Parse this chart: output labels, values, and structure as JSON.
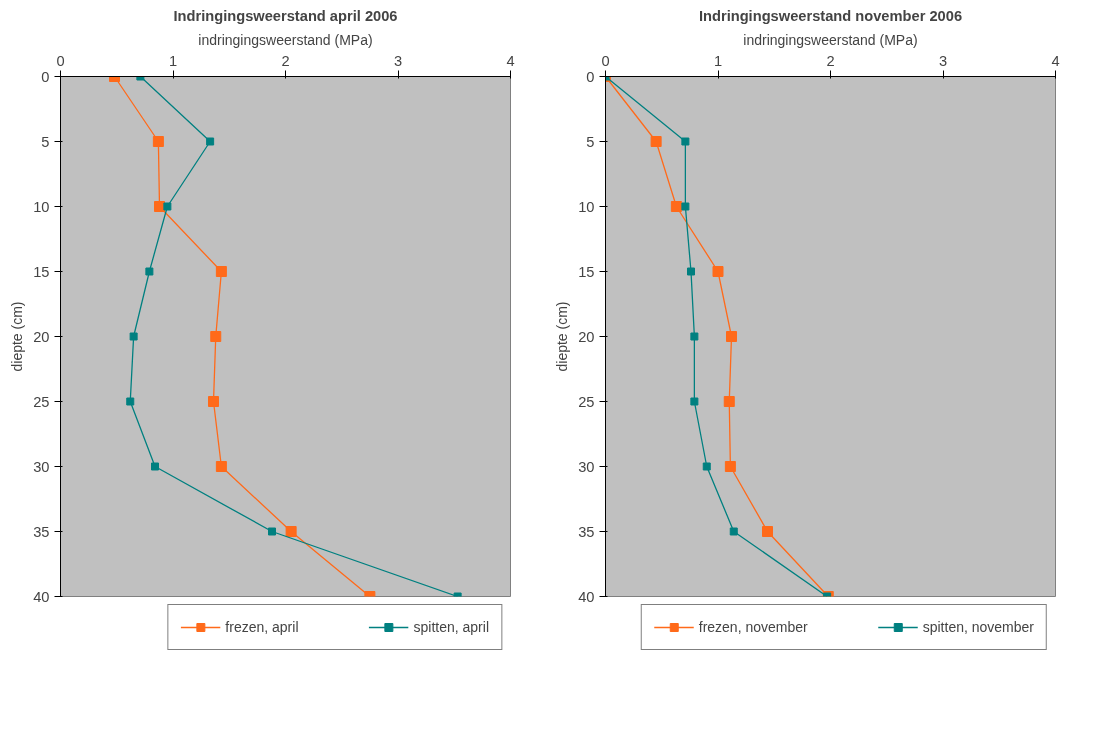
{
  "chart_data": [
    {
      "type": "line",
      "title": "Indringingsweerstand april 2006",
      "xlabel": "indringingsweerstand (MPa)",
      "ylabel": "diepte (cm)",
      "xlim": [
        0,
        4
      ],
      "xticks": [
        0,
        1,
        2,
        3,
        4
      ],
      "ylim": [
        40,
        0
      ],
      "yticks": [
        0,
        5,
        10,
        15,
        20,
        25,
        30,
        35,
        40
      ],
      "grid": false,
      "legend": "bottom",
      "marker": "square",
      "line_style": "solid",
      "series": [
        {
          "name": "frezen, april",
          "color": "#ff6a1a",
          "x": [
            0.48,
            0.87,
            0.88,
            1.43,
            1.38,
            1.36,
            1.43,
            2.05,
            2.75
          ],
          "values": [
            0,
            5,
            10,
            15,
            20,
            25,
            30,
            35,
            40
          ]
        },
        {
          "name": "spitten, april",
          "color": "#008080",
          "x": [
            0.71,
            1.33,
            0.95,
            0.79,
            0.65,
            0.62,
            0.84,
            1.88,
            3.53
          ],
          "values": [
            0,
            5,
            10,
            15,
            20,
            25,
            30,
            35,
            40
          ]
        }
      ]
    },
    {
      "type": "line",
      "title": "Indringingsweerstand november 2006",
      "xlabel": "indringingsweerstand (MPa)",
      "ylabel": "diepte (cm)",
      "xlim": [
        0,
        4
      ],
      "xticks": [
        0,
        1,
        2,
        3,
        4
      ],
      "ylim": [
        40,
        0
      ],
      "yticks": [
        0,
        5,
        10,
        15,
        20,
        25,
        30,
        35,
        40
      ],
      "grid": false,
      "legend": "bottom",
      "marker": "square",
      "line_style": "solid",
      "series": [
        {
          "name": "frezen, november",
          "color": "#ff6a1a",
          "x": [
            0,
            0.45,
            0.63,
            1.0,
            1.12,
            1.1,
            1.11,
            1.44,
            1.98
          ],
          "values": [
            0,
            5,
            10,
            15,
            20,
            25,
            30,
            35,
            40
          ]
        },
        {
          "name": "spitten, november",
          "color": "#008080",
          "x": [
            0,
            0.71,
            0.71,
            0.76,
            0.79,
            0.79,
            0.9,
            1.14,
            1.97
          ],
          "values": [
            0,
            5,
            10,
            15,
            20,
            25,
            30,
            35,
            40
          ]
        }
      ]
    }
  ]
}
